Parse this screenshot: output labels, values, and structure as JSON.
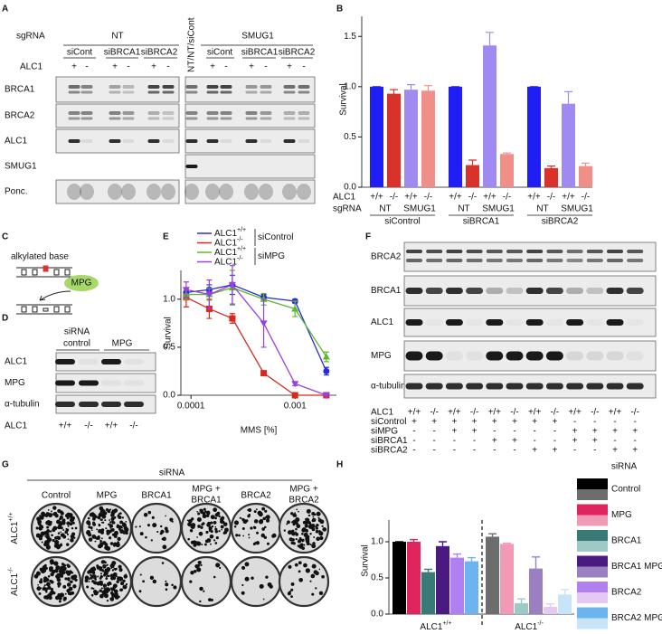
{
  "panel_letters": [
    "A",
    "B",
    "C",
    "D",
    "E",
    "F",
    "G",
    "H"
  ],
  "panel_a": {
    "sgrna_label": "sgRNA",
    "groups": [
      {
        "name": "NT",
        "sirnas": [
          "siCont",
          "siBRCA1",
          "siBRCA2"
        ]
      },
      {
        "name": "SMUG1",
        "sirnas": [
          "siCont",
          "siBRCA1",
          "siBRCA2"
        ]
      }
    ],
    "control_lane": "NT/NT/siCont",
    "alc1_label": "ALC1",
    "alc1_signs": [
      "+",
      "-",
      "+",
      "-",
      "+",
      "-"
    ],
    "rows": [
      "BRCA1",
      "BRCA2",
      "ALC1",
      "SMUG1",
      "Ponc."
    ]
  },
  "panel_c": {
    "label": "alkylated base",
    "enzyme": "MPG"
  },
  "panel_d": {
    "sirna_label": "siRNA",
    "groups": [
      "control",
      "MPG"
    ],
    "rows": [
      "ALC1",
      "MPG",
      "α-tubulin"
    ],
    "genotype_label": "ALC1",
    "genotypes": [
      "+/+",
      "-/-",
      "+/+",
      "-/-"
    ]
  },
  "panel_f": {
    "rows": [
      "BRCA2",
      "BRCA1",
      "ALC1",
      "MPG",
      "α-tubulin"
    ],
    "conditions": [
      {
        "name": "ALC1",
        "values": [
          "+/+",
          "-/-",
          "+/+",
          "-/-",
          "+/+",
          "-/-",
          "+/+",
          "-/-",
          "+/+",
          "-/-",
          "+/+",
          "-/-"
        ]
      },
      {
        "name": "siControl",
        "values": [
          "+",
          "+",
          "+",
          "+",
          "+",
          "+",
          "+",
          "+",
          "-",
          "-",
          "-",
          "-"
        ]
      },
      {
        "name": "siMPG",
        "values": [
          "-",
          "-",
          "+",
          "+",
          "-",
          "-",
          "-",
          "-",
          "+",
          "+",
          "+",
          "+"
        ]
      },
      {
        "name": "siBRCA1",
        "values": [
          "-",
          "-",
          "-",
          "-",
          "+",
          "+",
          "-",
          "-",
          "+",
          "+",
          "-",
          "-"
        ]
      },
      {
        "name": "siBRCA2",
        "values": [
          "-",
          "-",
          "-",
          "-",
          "-",
          "-",
          "+",
          "+",
          "-",
          "-",
          "+",
          "+"
        ]
      }
    ]
  },
  "panel_g": {
    "sirna_label": "siRNA",
    "columns": [
      [
        "Control"
      ],
      [
        "MPG"
      ],
      [
        "BRCA1"
      ],
      [
        "MPG +",
        "BRCA1"
      ],
      [
        "BRCA2"
      ],
      [
        "MPG +",
        "BRCA2"
      ]
    ],
    "rows": [
      {
        "name": "ALC1",
        "genotype": "+/+"
      },
      {
        "name": "ALC1",
        "genotype": "-/-"
      }
    ]
  },
  "chart_data": [
    {
      "type": "bar",
      "y_label": "Survival",
      "ylim": [
        0,
        1.7
      ],
      "yticks": [
        {
          "value": 0,
          "label": "0.0"
        },
        0.5,
        {
          "value": 1,
          "label": "1.0"
        },
        1.5
      ],
      "categories": [
        "siControl",
        "siBRCA1",
        "siBRCA2"
      ],
      "row_labels": [
        "ALC1",
        "sgRNA"
      ],
      "alc1_labels": [
        "+/+",
        "-/-",
        "+/+",
        "-/-"
      ],
      "sgrna_labels": [
        "NT",
        "SMUG1"
      ],
      "series": [
        {
          "color": "#1f1ff5",
          "values": [
            1,
            1,
            1
          ],
          "errors": [
            0,
            0,
            0
          ]
        },
        {
          "color": "#d8322a",
          "values": [
            0.93,
            0.22,
            0.19
          ],
          "errors": [
            0.04,
            0.05,
            0.02
          ]
        },
        {
          "color": "#a08af2",
          "values": [
            0.97,
            1.41,
            0.83
          ],
          "errors": [
            0.05,
            0.13,
            0.12
          ]
        },
        {
          "color": "#ef8f88",
          "values": [
            0.96,
            0.33,
            0.21
          ],
          "errors": [
            0.05,
            0.01,
            0.03
          ]
        }
      ]
    },
    {
      "type": "line",
      "x_log": true,
      "x_label": "MMS [%]",
      "y_label": "Survival",
      "xlim": [
        8e-05,
        0.0025
      ],
      "xticks": [
        0.0001,
        0.001
      ],
      "ylim": [
        0,
        1.3
      ],
      "yticks": [
        {
          "value": 0,
          "label": "0.0"
        },
        0.5,
        {
          "value": 1,
          "label": "1.0"
        }
      ],
      "x": [
        9e-05,
        0.00015,
        0.00025,
        0.0005,
        0.001,
        0.002
      ],
      "legend_groups": [
        "siControl",
        "siMPG"
      ],
      "series": [
        {
          "name": "ALC1",
          "genotype": "+/+",
          "color": "#2b2bd9",
          "marker": "circle",
          "values": [
            1.07,
            1.1,
            1.15,
            1.02,
            0.98,
            0.25
          ],
          "errors": [
            0.05,
            0.05,
            0.1,
            0.03,
            0.02,
            0.04
          ]
        },
        {
          "name": "ALC1",
          "genotype": "-/-",
          "color": "#d62a1e",
          "marker": "square",
          "values": [
            1.02,
            0.9,
            0.8,
            0.23,
            0,
            0
          ],
          "errors": [
            0.1,
            0.1,
            0.05,
            0.02,
            0,
            0
          ]
        },
        {
          "name": "ALC1",
          "genotype": "+/+",
          "color": "#5cb82e",
          "marker": "triangle-up",
          "values": [
            1.05,
            1.05,
            1.12,
            1.0,
            0.9,
            0.4
          ],
          "errors": [
            0.05,
            0.06,
            0.18,
            0.06,
            0.08,
            0.05
          ]
        },
        {
          "name": "ALC1",
          "genotype": "-/-",
          "color": "#9b3fe0",
          "marker": "triangle-down",
          "values": [
            1.1,
            1.05,
            1.15,
            0.75,
            0.12,
            0
          ],
          "errors": [
            0.08,
            0.15,
            0.2,
            0.25,
            0.02,
            0
          ]
        }
      ]
    },
    {
      "type": "bar",
      "legend_title": "siRNA",
      "y_label": "Survival",
      "ylim": [
        0,
        1.3
      ],
      "yticks": [
        {
          "value": 0,
          "label": "0.0"
        },
        0.5,
        {
          "value": 1,
          "label": "1.0"
        }
      ],
      "categories": [
        "ALC1",
        "ALC1"
      ],
      "category_genotypes": [
        "+/+",
        "-/-"
      ],
      "series": [
        {
          "name": "Control",
          "colors": [
            "#000000",
            "#6d6d6d"
          ],
          "values": [
            1.0,
            1.07
          ],
          "errors": [
            0,
            0.04
          ]
        },
        {
          "name": "MPG",
          "colors": [
            "#e0245e",
            "#f09ab5"
          ],
          "values": [
            1.0,
            0.97
          ],
          "errors": [
            0.03,
            0.01
          ]
        },
        {
          "name": "BRCA1",
          "colors": [
            "#3a7a76",
            "#9ec9c5"
          ],
          "values": [
            0.58,
            0.15
          ],
          "errors": [
            0.04,
            0.06
          ]
        },
        {
          "name": "BRCA1 MPG",
          "colors": [
            "#4a1a80",
            "#9a80c0"
          ],
          "values": [
            0.94,
            0.63
          ],
          "errors": [
            0.06,
            0.16
          ]
        },
        {
          "name": "BRCA2",
          "colors": [
            "#b07ff0",
            "#e6c8f5"
          ],
          "values": [
            0.78,
            0.1
          ],
          "errors": [
            0.05,
            0.04
          ]
        },
        {
          "name": "BRCA2 MPG",
          "colors": [
            "#6cb4f0",
            "#c8e4f8"
          ],
          "values": [
            0.73,
            0.27
          ],
          "errors": [
            0.05,
            0.07
          ]
        }
      ]
    }
  ]
}
